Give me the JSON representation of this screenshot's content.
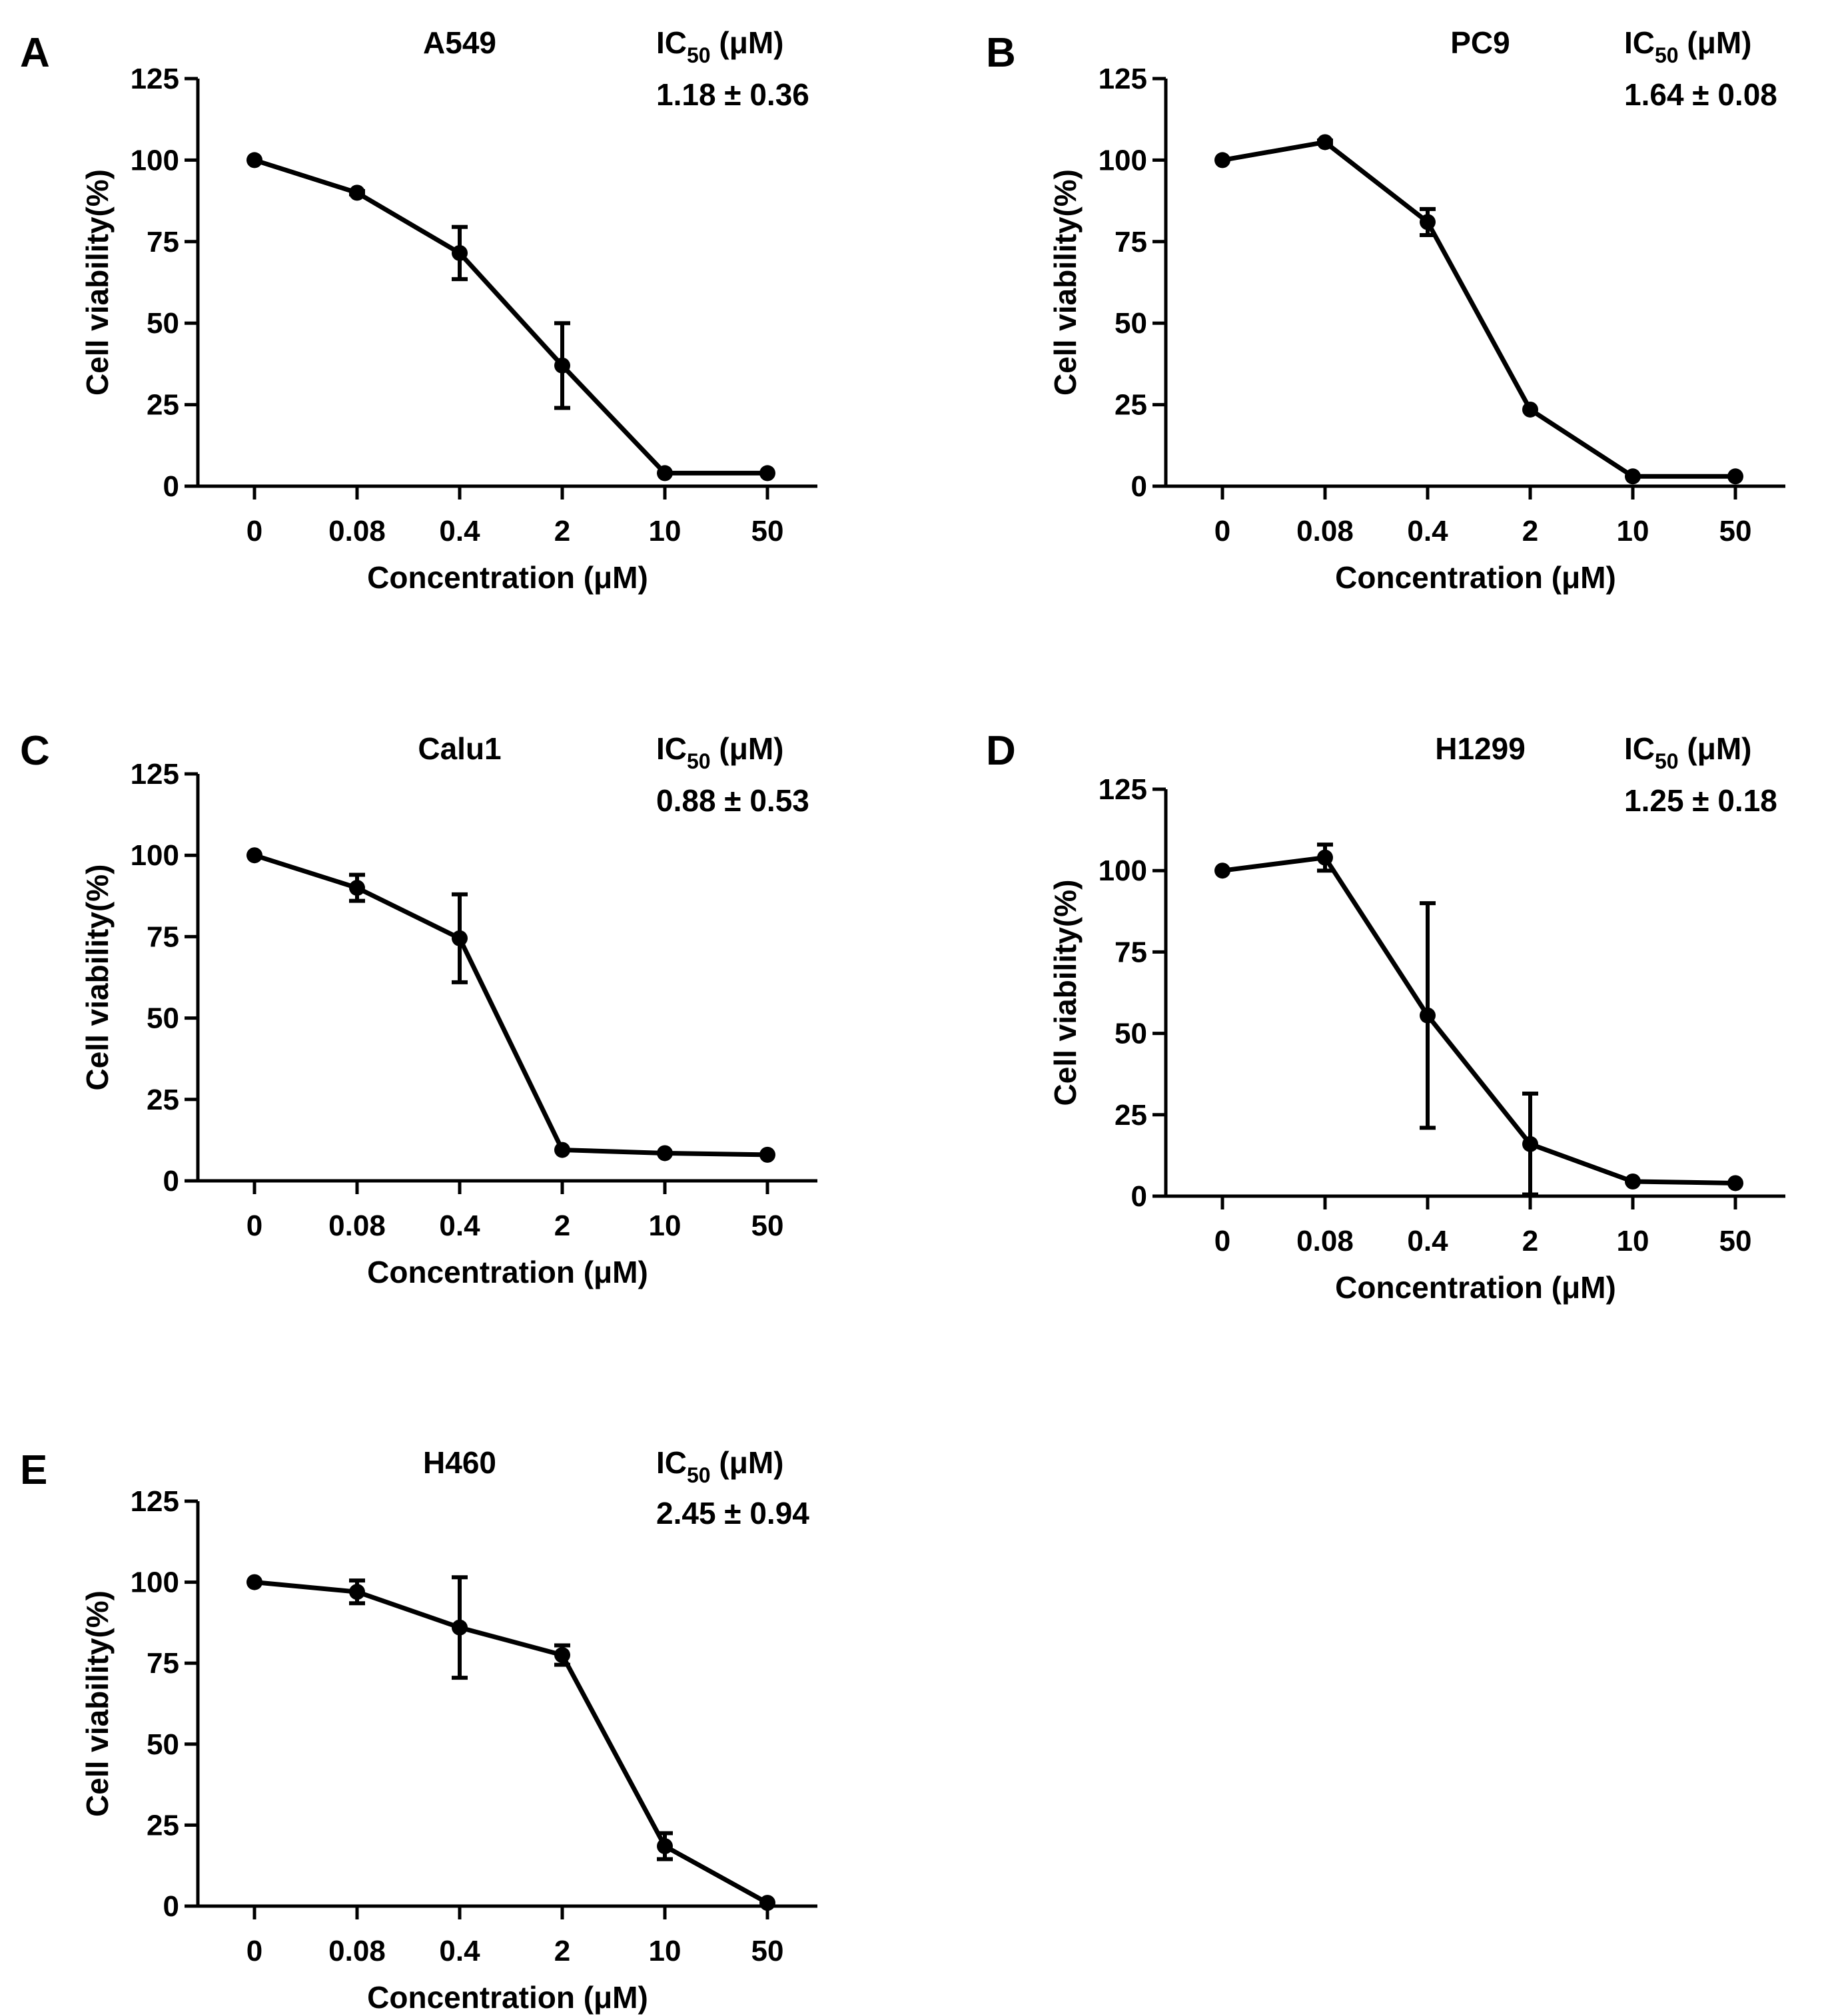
{
  "figure": {
    "x_categories": [
      "0",
      "0.08",
      "0.4",
      "2",
      "10",
      "50"
    ],
    "y_ticks": [
      "0",
      "25",
      "50",
      "75",
      "100",
      "125"
    ],
    "ylabel": "Cell viability(%)",
    "xlabel": "Concentration (μM)",
    "ic_label_main": "IC",
    "ic_label_sub": "50",
    "ic_label_unit": " (μM)"
  },
  "chart_data": [
    {
      "panel": "A",
      "type": "line",
      "title": "A549",
      "ic50": "1.18 ± 0.36",
      "xlabel": "Concentration (μM)",
      "ylabel": "Cell viability(%)",
      "categories": [
        "0",
        "0.08",
        "0.4",
        "2",
        "10",
        "50"
      ],
      "ylim": [
        0,
        125
      ],
      "series": [
        {
          "name": "A549",
          "values": [
            100,
            90,
            71.5,
            37,
            4,
            4
          ],
          "errors": [
            0,
            0.5,
            8,
            13,
            0,
            0
          ]
        }
      ]
    },
    {
      "panel": "B",
      "type": "line",
      "title": "PC9",
      "ic50": "1.64 ± 0.08",
      "xlabel": "Concentration (μM)",
      "ylabel": "Cell viability(%)",
      "categories": [
        "0",
        "0.08",
        "0.4",
        "2",
        "10",
        "50"
      ],
      "ylim": [
        0,
        125
      ],
      "series": [
        {
          "name": "PC9",
          "values": [
            100,
            105.5,
            81,
            23.5,
            3,
            3
          ],
          "errors": [
            0,
            0.5,
            4,
            0,
            0,
            0
          ]
        }
      ]
    },
    {
      "panel": "C",
      "type": "line",
      "title": "Calu1",
      "ic50": "0.88 ± 0.53",
      "xlabel": "Concentration (μM)",
      "ylabel": "Cell viability(%)",
      "categories": [
        "0",
        "0.08",
        "0.4",
        "2",
        "10",
        "50"
      ],
      "ylim": [
        0,
        125
      ],
      "series": [
        {
          "name": "Calu1",
          "values": [
            100,
            90,
            74.5,
            9.5,
            8.5,
            8
          ],
          "errors": [
            0,
            4,
            13.5,
            0,
            0,
            0
          ]
        }
      ]
    },
    {
      "panel": "D",
      "type": "line",
      "title": "H1299",
      "ic50": "1.25 ± 0.18",
      "xlabel": "Concentration (μM)",
      "ylabel": "Cell viability(%)",
      "categories": [
        "0",
        "0.08",
        "0.4",
        "2",
        "10",
        "50"
      ],
      "ylim": [
        0,
        125
      ],
      "series": [
        {
          "name": "H1299",
          "values": [
            100,
            104,
            55.5,
            16,
            4.5,
            4
          ],
          "errors": [
            0,
            4,
            34.5,
            15.5,
            0,
            0
          ]
        }
      ]
    },
    {
      "panel": "E",
      "type": "line",
      "title": "H460",
      "ic50": "2.45 ± 0.94",
      "xlabel": "Concentration (μM)",
      "ylabel": "Cell viability(%)",
      "categories": [
        "0",
        "0.08",
        "0.4",
        "2",
        "10",
        "50"
      ],
      "ylim": [
        0,
        125
      ],
      "series": [
        {
          "name": "H460",
          "values": [
            100,
            97,
            86,
            77.5,
            18.5,
            1
          ],
          "errors": [
            0,
            3.5,
            15.5,
            3,
            4,
            0
          ]
        }
      ]
    }
  ]
}
